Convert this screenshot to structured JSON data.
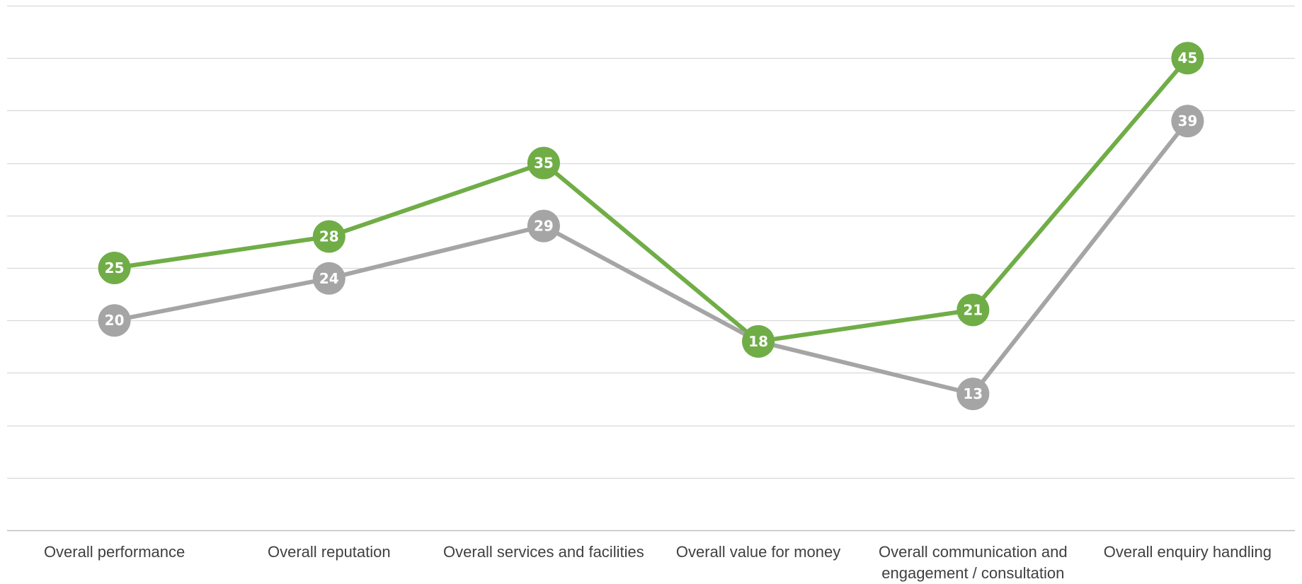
{
  "chart_data": {
    "type": "line",
    "title": "",
    "xlabel": "",
    "ylabel": "",
    "ylim": [
      0,
      50
    ],
    "grid": true,
    "legend": "none",
    "categories": [
      "Overall performance",
      "Overall reputation",
      "Overall services and facilities",
      "Overall value for money",
      "Overall communication and engagement / consultation",
      "Overall enquiry handling"
    ],
    "series": [
      {
        "color": "#70AD47",
        "values": [
          25,
          28,
          35,
          18,
          21,
          45
        ]
      },
      {
        "color": "#A5A5A5",
        "values": [
          20,
          24,
          29,
          18,
          13,
          39
        ]
      }
    ],
    "gridline_color": "#D9D9D9",
    "axis_color": "#BFBFBF",
    "label_color": "#404040"
  }
}
